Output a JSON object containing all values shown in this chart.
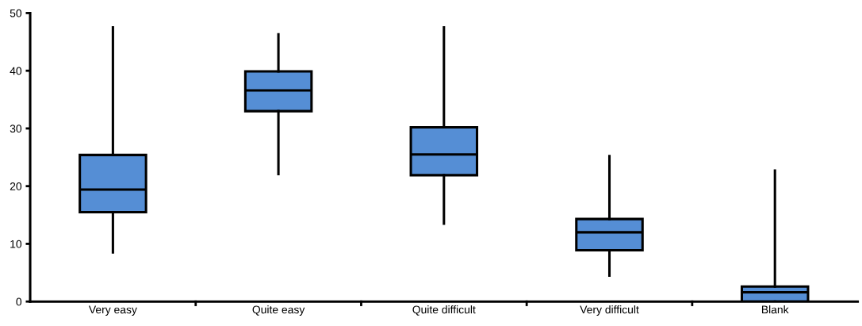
{
  "chart_data": {
    "type": "box",
    "categories": [
      "Very easy",
      "Quite easy",
      "Quite difficult",
      "Very difficult",
      "Blank"
    ],
    "boxes": [
      {
        "low": 8.5,
        "q1": 15.5,
        "median": 19.4,
        "q3": 25.4,
        "high": 47.5
      },
      {
        "low": 22.1,
        "q1": 33.0,
        "median": 36.6,
        "q3": 39.9,
        "high": 46.3
      },
      {
        "low": 13.5,
        "q1": 21.9,
        "median": 25.5,
        "q3": 30.2,
        "high": 47.5
      },
      {
        "low": 4.5,
        "q1": 8.9,
        "median": 12.0,
        "q3": 14.3,
        "high": 25.2
      },
      {
        "low": 0,
        "q1": 0,
        "median": 1.6,
        "q3": 2.6,
        "high": 22.7
      }
    ],
    "color": "#558ed5",
    "ylim": [
      0,
      50
    ],
    "yticks": [
      0,
      10,
      20,
      30,
      40,
      50
    ],
    "grid": false,
    "legend": false
  }
}
